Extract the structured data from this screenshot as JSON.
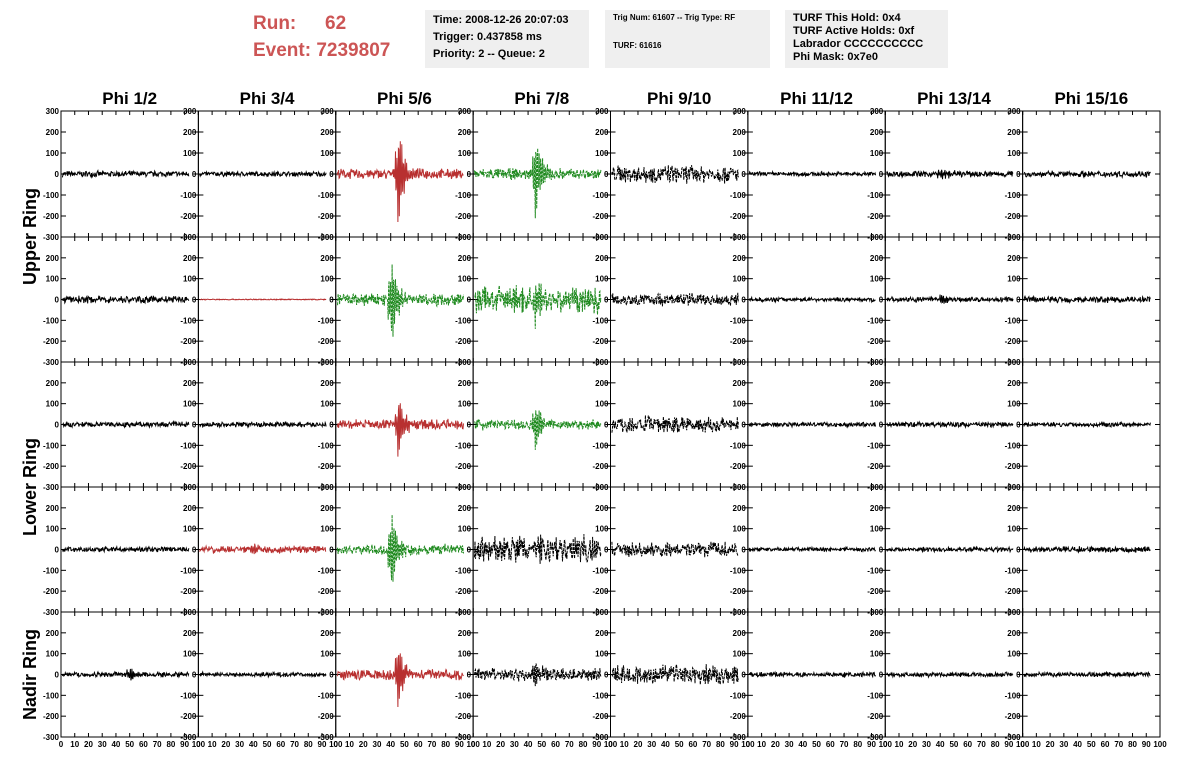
{
  "header": {
    "run_label": "Run:",
    "run_value": "62",
    "event_label": "Event:",
    "event_value": "7239807",
    "time_line": "Time: 2008-12-26 20:07:03",
    "trigger_line": "Trigger: 0.437858 ms",
    "priority_line": "Priority: 2 -- Queue: 2",
    "trig_line": "Trig Num: 61607 -- Trig Type: RF",
    "turf_line": "TURF: 61616",
    "turf_hold_line": "TURF This Hold: 0x4",
    "turf_active_line": "TURF Active Holds: 0xf",
    "labrador_line": "Labrador CCCCCCCCCC",
    "phimask_line": "Phi Mask: 0x7e0"
  },
  "chart_data": {
    "type": "line",
    "columns": [
      "Phi 1/2",
      "Phi 3/4",
      "Phi 5/6",
      "Phi 7/8",
      "Phi 9/10",
      "Phi 11/12",
      "Phi 13/14",
      "Phi 15/16"
    ],
    "row_labels": [
      "Upper Ring",
      "Upper Ring",
      "Lower Ring",
      "Lower Ring",
      "Nadir Ring"
    ],
    "ring_titles": [
      "Upper Ring",
      "Lower Ring",
      "Nadir Ring"
    ],
    "x_range": [
      0,
      100
    ],
    "y_range": [
      -300,
      300
    ],
    "x_ticks": [
      "0",
      "10",
      "20",
      "30",
      "40",
      "50",
      "60",
      "70",
      "80",
      "90",
      "100"
    ],
    "y_ticks": [
      "300",
      "200",
      "100",
      "0",
      "-100",
      "-200",
      "-300"
    ],
    "colors": {
      "trace": "#000000",
      "red": "#b83030",
      "green": "#1f8a1f",
      "axis": "#000000"
    },
    "panels": [
      [
        {
          "style": "black",
          "amp": 12,
          "spike": 0,
          "center": 50,
          "dashed": false
        },
        {
          "style": "black",
          "amp": 10,
          "spike": 0,
          "center": 50,
          "dashed": false
        },
        {
          "style": "red",
          "amp": 20,
          "spike": 250,
          "center": 45,
          "dashed": false
        },
        {
          "style": "green",
          "amp": 22,
          "spike": 220,
          "center": 45,
          "dashed": true
        },
        {
          "style": "black",
          "amp": 35,
          "spike": 0,
          "center": 50,
          "dashed": true
        },
        {
          "style": "black",
          "amp": 9,
          "spike": 0,
          "center": 50,
          "dashed": false
        },
        {
          "style": "black",
          "amp": 12,
          "spike": 40,
          "center": 40,
          "dashed": false
        },
        {
          "style": "black",
          "amp": 12,
          "spike": 0,
          "center": 50,
          "dashed": false
        }
      ],
      [
        {
          "style": "black",
          "amp": 14,
          "spike": 0,
          "center": 50,
          "dashed": false
        },
        {
          "style": "red",
          "amp": 2,
          "spike": 0,
          "center": 50,
          "dashed": false
        },
        {
          "style": "green",
          "amp": 25,
          "spike": 260,
          "center": 40,
          "dashed": true
        },
        {
          "style": "green",
          "amp": 55,
          "spike": 130,
          "center": 45,
          "dashed": true
        },
        {
          "style": "black",
          "amp": 25,
          "spike": 0,
          "center": 50,
          "dashed": true
        },
        {
          "style": "black",
          "amp": 8,
          "spike": 0,
          "center": 50,
          "dashed": false
        },
        {
          "style": "black",
          "amp": 10,
          "spike": 30,
          "center": 40,
          "dashed": false
        },
        {
          "style": "black",
          "amp": 13,
          "spike": 0,
          "center": 50,
          "dashed": false
        }
      ],
      [
        {
          "style": "black",
          "amp": 10,
          "spike": 0,
          "center": 50,
          "dashed": false
        },
        {
          "style": "black",
          "amp": 10,
          "spike": 0,
          "center": 50,
          "dashed": false
        },
        {
          "style": "red",
          "amp": 20,
          "spike": 160,
          "center": 45,
          "dashed": false
        },
        {
          "style": "green",
          "amp": 22,
          "spike": 130,
          "center": 45,
          "dashed": true
        },
        {
          "style": "black",
          "amp": 35,
          "spike": 0,
          "center": 50,
          "dashed": true
        },
        {
          "style": "black",
          "amp": 9,
          "spike": 0,
          "center": 50,
          "dashed": false
        },
        {
          "style": "black",
          "amp": 10,
          "spike": 0,
          "center": 50,
          "dashed": false
        },
        {
          "style": "black",
          "amp": 9,
          "spike": 0,
          "center": 50,
          "dashed": false
        }
      ],
      [
        {
          "style": "black",
          "amp": 10,
          "spike": 0,
          "center": 50,
          "dashed": false
        },
        {
          "style": "red",
          "amp": 14,
          "spike": 40,
          "center": 40,
          "dashed": false
        },
        {
          "style": "green",
          "amp": 20,
          "spike": 230,
          "center": 40,
          "dashed": true
        },
        {
          "style": "black",
          "amp": 55,
          "spike": 0,
          "center": 50,
          "dashed": true
        },
        {
          "style": "black",
          "amp": 28,
          "spike": 0,
          "center": 50,
          "dashed": true
        },
        {
          "style": "black",
          "amp": 8,
          "spike": 0,
          "center": 50,
          "dashed": false
        },
        {
          "style": "black",
          "amp": 9,
          "spike": 0,
          "center": 50,
          "dashed": false
        },
        {
          "style": "black",
          "amp": 12,
          "spike": 0,
          "center": 50,
          "dashed": false
        }
      ],
      [
        {
          "style": "black",
          "amp": 10,
          "spike": 40,
          "center": 50,
          "dashed": false
        },
        {
          "style": "black",
          "amp": 9,
          "spike": 0,
          "center": 50,
          "dashed": false
        },
        {
          "style": "red",
          "amp": 20,
          "spike": 180,
          "center": 45,
          "dashed": false
        },
        {
          "style": "black",
          "amp": 25,
          "spike": 80,
          "center": 45,
          "dashed": true
        },
        {
          "style": "black",
          "amp": 40,
          "spike": 0,
          "center": 50,
          "dashed": true
        },
        {
          "style": "black",
          "amp": 9,
          "spike": 0,
          "center": 50,
          "dashed": false
        },
        {
          "style": "black",
          "amp": 9,
          "spike": 0,
          "center": 50,
          "dashed": false
        },
        {
          "style": "black",
          "amp": 9,
          "spike": 0,
          "center": 50,
          "dashed": false
        }
      ]
    ]
  }
}
